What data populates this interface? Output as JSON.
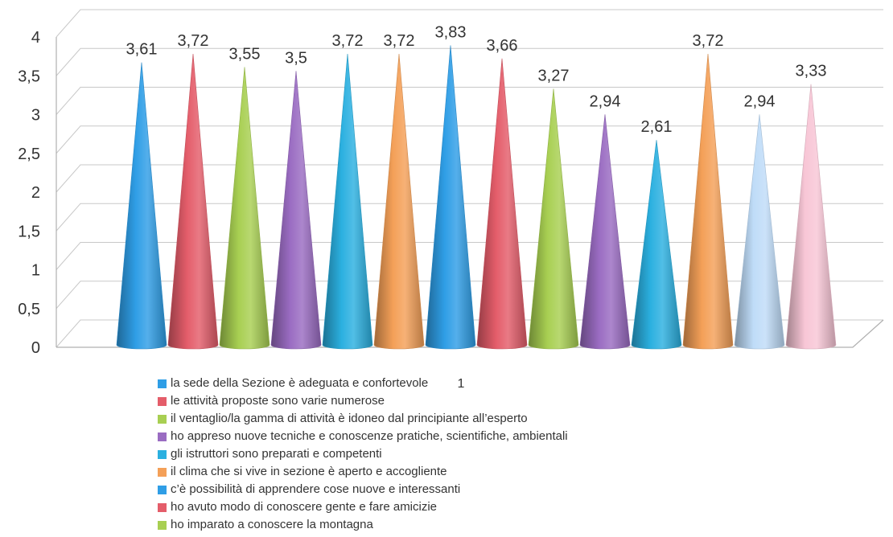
{
  "chart_data": {
    "type": "bar",
    "bar_shape": "cone",
    "yticks": [
      "0",
      "0,5",
      "1",
      "1,5",
      "2",
      "2,5",
      "3",
      "3,5",
      "4"
    ],
    "ylim": [
      0,
      4
    ],
    "x_tick_label": "1",
    "grid": true,
    "legend_position": "bottom",
    "series": [
      {
        "name": "la sede della Sezione è adeguata e confortevole",
        "value": 3.61,
        "label": "3,61",
        "color": "#2f9ee6"
      },
      {
        "name": "le attività proposte sono varie numerose",
        "value": 3.72,
        "label": "3,72",
        "color": "#e45d6a"
      },
      {
        "name": "il ventaglio/la gamma  di attività è idoneo dal principiante all’esperto",
        "value": 3.55,
        "label": "3,55",
        "color": "#a8cf52"
      },
      {
        "name": "ho appreso nuove tecniche e conoscenze pratiche, scientifiche, ambientali",
        "value": 3.5,
        "label": "3,5",
        "color": "#9a6cc2"
      },
      {
        "name": "gli istruttori sono preparati e competenti",
        "value": 3.72,
        "label": "3,72",
        "color": "#2bb0e0"
      },
      {
        "name": "il clima che si vive in  sezione è aperto e accogliente",
        "value": 3.72,
        "label": "3,72",
        "color": "#f4a058"
      },
      {
        "name": "c’è possibilità di apprendere cose nuove e interessanti",
        "value": 3.83,
        "label": "3,83",
        "color": "#2f9ee6"
      },
      {
        "name": "ho avuto modo di conoscere gente e fare amicizie",
        "value": 3.66,
        "label": "3,66",
        "color": "#e45d6a"
      },
      {
        "name": "ho imparato a conoscere la montagna",
        "value": 3.27,
        "label": "3,27",
        "color": "#a8cf52"
      },
      {
        "name": "",
        "value": 2.94,
        "label": "2,94",
        "color": "#9a6cc2"
      },
      {
        "name": "",
        "value": 2.61,
        "label": "2,61",
        "color": "#2bb0e0"
      },
      {
        "name": "",
        "value": 3.72,
        "label": "3,72",
        "color": "#f4a058"
      },
      {
        "name": "",
        "value": 2.94,
        "label": "2,94",
        "color": "#bfdcf8"
      },
      {
        "name": "",
        "value": 3.33,
        "label": "3,33",
        "color": "#f8c6d6"
      }
    ]
  }
}
